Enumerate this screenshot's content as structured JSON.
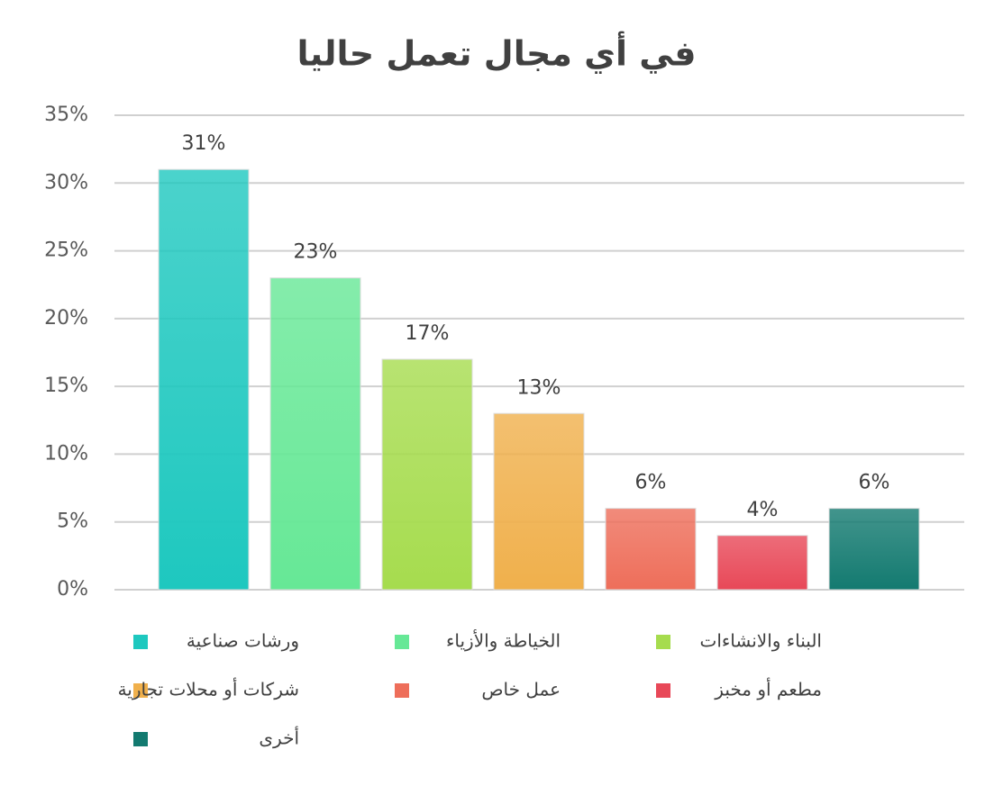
{
  "chart_data": {
    "type": "bar",
    "title": "في أي مجال تعمل حاليا",
    "categories": [
      "ورشات صناعية",
      "الخياطة والأزياء",
      "البناء والانشاءات",
      "شركات أو محلات تجارية",
      "عمل خاص",
      "مطعم أو مخبز",
      "أخرى"
    ],
    "values": [
      31,
      23,
      17,
      13,
      6,
      4,
      6
    ],
    "value_labels": [
      "31%",
      "23%",
      "17%",
      "13%",
      "6%",
      "4%",
      "6%"
    ],
    "colors": [
      "#1ec8bf",
      "#66e896",
      "#a6dc4e",
      "#f0b04c",
      "#ee6e5a",
      "#e84858",
      "#137a70"
    ],
    "ylim": [
      0,
      35
    ],
    "yticks": [
      {
        "value": 0,
        "label": "0%"
      },
      {
        "value": 5,
        "label": "5%"
      },
      {
        "value": 10,
        "label": "10%"
      },
      {
        "value": 15,
        "label": "15%"
      },
      {
        "value": 20,
        "label": "20%"
      },
      {
        "value": 25,
        "label": "25%"
      },
      {
        "value": 30,
        "label": "30%"
      },
      {
        "value": 35,
        "label": "35%"
      }
    ],
    "grid": true
  }
}
